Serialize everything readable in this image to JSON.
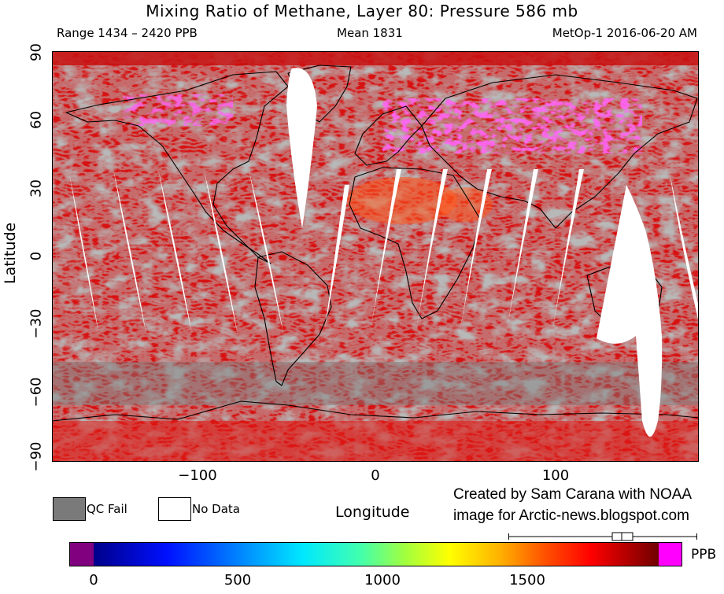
{
  "header": {
    "title": "Mixing Ratio of Methane, Layer 80: Pressure 586 mb",
    "range": "Range 1434 – 2420 PPB",
    "mean": "Mean 1831",
    "satellite": "MetOp-1 2016-06-20 AM"
  },
  "axes": {
    "y_title": "Latitude",
    "x_title": "Longitude",
    "y_ticks": [
      "90",
      "60",
      "30",
      "0",
      "−30",
      "−60",
      "−90"
    ],
    "x_ticks": [
      "−100",
      "0",
      "100"
    ]
  },
  "legend": {
    "qc_fail": "QC Fail",
    "no_data": "No Data",
    "qc_color": "#7a7a7a",
    "nodata_color": "#ffffff"
  },
  "credit": {
    "line1": "Created by Sam Carana with NOAA",
    "line2": "image for Arctic-news.blogspot.com"
  },
  "colorbar": {
    "unit": "PPB",
    "ticks": [
      "0",
      "500",
      "1000",
      "1500"
    ],
    "low_color": "#800080",
    "high_color": "#ff00ff"
  },
  "map_data": {
    "lat_range": [
      -90,
      90
    ],
    "lon_range": [
      -180,
      180
    ],
    "colors": {
      "background": "#d81010",
      "qc": "#7a7a7a",
      "high": "#ff22ee",
      "orange": "#ff5a1e"
    }
  }
}
